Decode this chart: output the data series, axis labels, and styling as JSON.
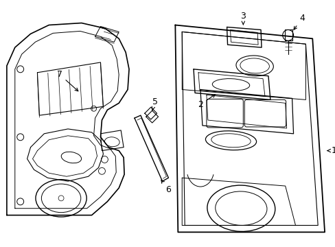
{
  "background_color": "#ffffff",
  "line_color": "#000000",
  "figsize": [
    4.89,
    3.6
  ],
  "dpi": 100,
  "lw_main": 1.0,
  "lw_inner": 0.6,
  "label_fontsize": 9
}
